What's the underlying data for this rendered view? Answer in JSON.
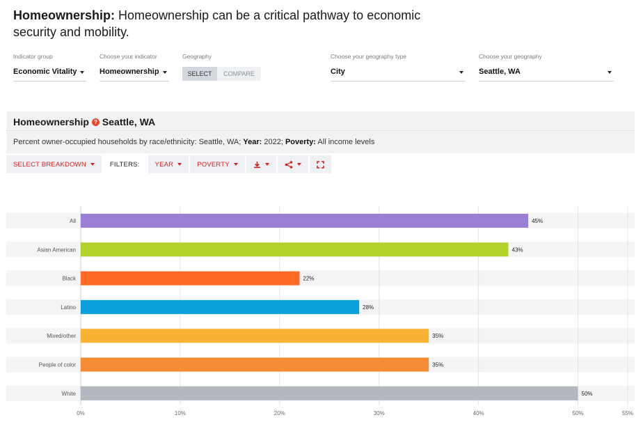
{
  "header": {
    "title_bold": "Homeownership:",
    "title_rest": " Homeownership can be a critical pathway to economic security and mobility."
  },
  "controls": {
    "indicator_group": {
      "label": "Indicator group",
      "value": "Economic Vitality"
    },
    "indicator": {
      "label": "Choose your indicator",
      "value": "Homeownership"
    },
    "geography": {
      "label": "Geography",
      "select": "SELECT",
      "compare": "COMPARE"
    },
    "geography_type": {
      "label": "Choose your geography type",
      "value": "City"
    },
    "geography_value": {
      "label": "Choose your geography",
      "value": "Seattle, WA"
    }
  },
  "panel": {
    "title_indicator": "Homeownership",
    "title_place": "Seattle, WA",
    "desc_prefix": "Percent owner-occupied households by race/ethnicity: Seattle, WA; ",
    "year_label": "Year:",
    "year_value": " 2022; ",
    "poverty_label": "Poverty:",
    "poverty_value": " All income levels"
  },
  "toolbar": {
    "breakdown": "SELECT BREAKDOWN",
    "filters": "FILTERS:",
    "year": "YEAR",
    "poverty": "POVERTY",
    "icons": [
      "download-icon",
      "share-icon",
      "fullscreen-icon"
    ]
  },
  "chart_data": {
    "type": "bar",
    "orientation": "horizontal",
    "categories": [
      "All",
      "Asian American",
      "Black",
      "Latino",
      "Mixed/other",
      "People of color",
      "White"
    ],
    "values": [
      45,
      43,
      22,
      28,
      35,
      35,
      50
    ],
    "value_labels": [
      "45%",
      "43%",
      "22%",
      "28%",
      "35%",
      "35%",
      "50%"
    ],
    "colors": [
      "#9b7fd4",
      "#b2d12a",
      "#fe6a26",
      "#0aa0db",
      "#f9b233",
      "#f68d36",
      "#b3b7bf"
    ],
    "xlim": [
      0,
      55
    ],
    "xticks": [
      0,
      10,
      20,
      30,
      40,
      50,
      55
    ],
    "xtick_labels": [
      "0%",
      "10%",
      "20%",
      "30%",
      "40%",
      "50%",
      "55%"
    ],
    "grid": true,
    "title": "",
    "xlabel": "",
    "ylabel": ""
  },
  "colors": {
    "accent": "#d61f1f",
    "help": "#e84a2e"
  }
}
